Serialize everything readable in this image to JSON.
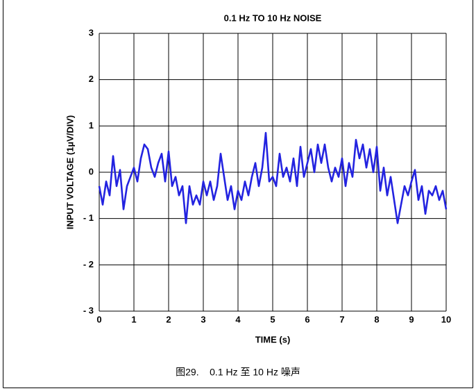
{
  "chart_data": {
    "type": "line",
    "title": "0.1 Hz TO 10 Hz NOISE",
    "xlabel": "TIME (s)",
    "ylabel": "INPUT VOLTAGE (1µV/DIV)",
    "caption": "图29.    0.1 Hz 至 10 Hz 噪声",
    "xlim": [
      0,
      10
    ],
    "xticks": [
      0,
      1,
      2,
      3,
      4,
      5,
      6,
      7,
      8,
      9,
      10
    ],
    "ylim": [
      -3,
      3
    ],
    "yticks": [
      {
        "value": -3,
        "label": "- 3"
      },
      {
        "value": -2,
        "label": "- 2"
      },
      {
        "value": -1,
        "label": "- 1"
      },
      0,
      1,
      2,
      3
    ],
    "grid": true,
    "x": [
      0,
      0.1,
      0.2,
      0.3,
      0.4,
      0.5,
      0.6,
      0.7,
      0.8,
      0.9,
      1,
      1.1,
      1.2,
      1.3,
      1.4,
      1.5,
      1.6,
      1.7,
      1.8,
      1.9,
      2,
      2.1,
      2.2,
      2.3,
      2.4,
      2.5,
      2.6,
      2.7,
      2.8,
      2.9,
      3,
      3.1,
      3.2,
      3.3,
      3.4,
      3.5,
      3.6,
      3.7,
      3.8,
      3.9,
      4,
      4.1,
      4.2,
      4.3,
      4.4,
      4.5,
      4.6,
      4.7,
      4.8,
      4.9,
      5,
      5.1,
      5.2,
      5.3,
      5.4,
      5.5,
      5.6,
      5.7,
      5.8,
      5.9,
      6,
      6.1,
      6.2,
      6.3,
      6.4,
      6.5,
      6.6,
      6.7,
      6.8,
      6.9,
      7,
      7.1,
      7.2,
      7.3,
      7.4,
      7.5,
      7.6,
      7.7,
      7.8,
      7.9,
      8,
      8.1,
      8.2,
      8.3,
      8.4,
      8.5,
      8.6,
      8.7,
      8.8,
      8.9,
      9,
      9.1,
      9.2,
      9.3,
      9.4,
      9.5,
      9.6,
      9.7,
      9.8,
      9.9,
      10
    ],
    "series": [
      {
        "name": "noise",
        "color": "#2323e0",
        "values": [
          -0.3,
          -0.7,
          -0.2,
          -0.5,
          0.35,
          -0.3,
          0.05,
          -0.8,
          -0.3,
          -0.1,
          0.1,
          -0.2,
          0.3,
          0.6,
          0.5,
          0.1,
          -0.1,
          0.2,
          0.4,
          -0.2,
          0.45,
          -0.3,
          -0.1,
          -0.5,
          -0.3,
          -1.1,
          -0.3,
          -0.7,
          -0.5,
          -0.7,
          -0.2,
          -0.5,
          -0.2,
          -0.6,
          -0.3,
          0.4,
          -0.1,
          -0.6,
          -0.3,
          -0.8,
          -0.4,
          -0.6,
          -0.2,
          -0.5,
          -0.1,
          0.2,
          -0.3,
          0.1,
          0.85,
          -0.2,
          -0.1,
          -0.3,
          0.4,
          -0.1,
          0.1,
          -0.2,
          0.3,
          -0.3,
          0.55,
          -0.1,
          0.2,
          0.5,
          0,
          0.6,
          0.2,
          0.6,
          0.1,
          -0.2,
          0.1,
          -0.1,
          0.3,
          -0.3,
          0.2,
          -0.1,
          0.7,
          0.3,
          0.6,
          0.1,
          0.5,
          0,
          0.55,
          -0.4,
          0.1,
          -0.5,
          -0.1,
          -0.6,
          -1.1,
          -0.7,
          -0.3,
          -0.5,
          -0.2,
          0.05,
          -0.6,
          -0.3,
          -0.9,
          -0.4,
          -0.5,
          -0.3,
          -0.6,
          -0.4,
          -0.8
        ]
      }
    ]
  }
}
